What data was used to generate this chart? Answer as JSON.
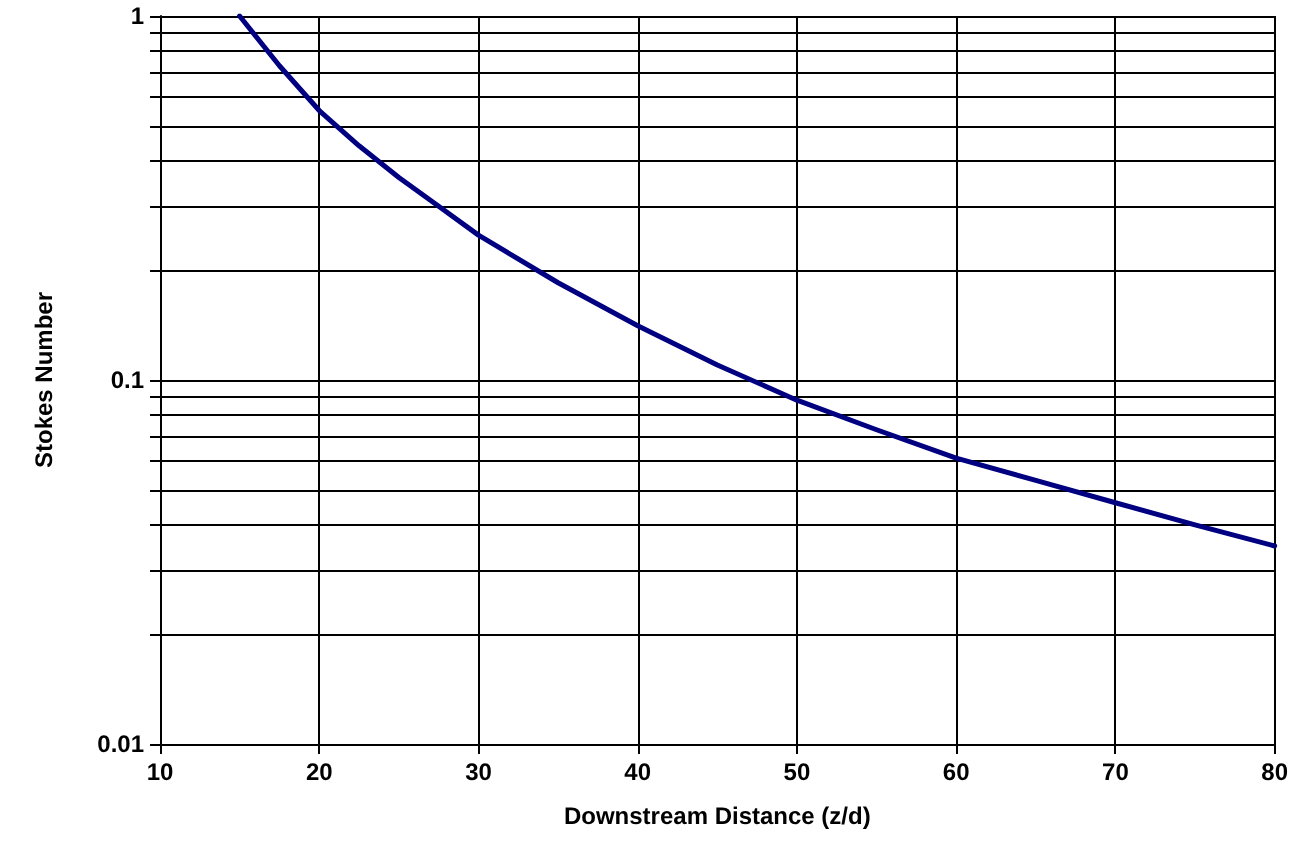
{
  "chart_data": {
    "type": "line",
    "xlabel": "Downstream Distance (z/d)",
    "ylabel": "Stokes Number",
    "x": [
      15,
      17.5,
      20,
      22.5,
      25,
      27.5,
      30,
      35,
      40,
      45,
      50,
      55,
      60,
      65,
      70,
      75,
      80
    ],
    "series": [
      {
        "color": "#000080",
        "values": [
          1,
          0.73,
          0.55,
          0.44,
          0.36,
          0.3,
          0.25,
          0.185,
          0.141,
          0.11,
          0.088,
          0.073,
          0.061,
          0.053,
          0.046,
          0.04,
          0.035
        ]
      }
    ],
    "xlim": [
      10,
      80
    ],
    "xticks": [
      10,
      20,
      30,
      40,
      50,
      60,
      70,
      80
    ],
    "ylim": [
      0.01,
      1
    ],
    "yticks": [
      0.01,
      {
        "value": 0.02,
        "label": null
      },
      {
        "value": 0.03,
        "label": null
      },
      {
        "value": 0.04,
        "label": null
      },
      {
        "value": 0.05,
        "label": null
      },
      {
        "value": 0.06,
        "label": null
      },
      {
        "value": 0.07,
        "label": null
      },
      {
        "value": 0.08,
        "label": null
      },
      {
        "value": 0.09,
        "label": null
      },
      0.1,
      {
        "value": 0.2,
        "label": null
      },
      {
        "value": 0.3,
        "label": null
      },
      {
        "value": 0.4,
        "label": null
      },
      {
        "value": 0.5,
        "label": null
      },
      {
        "value": 0.6,
        "label": null
      },
      {
        "value": 0.7,
        "label": null
      },
      {
        "value": 0.8,
        "label": null
      },
      {
        "value": 0.9,
        "label": null
      },
      1
    ],
    "log": "y",
    "grid": true,
    "marker": "none",
    "line_style": "solid"
  }
}
